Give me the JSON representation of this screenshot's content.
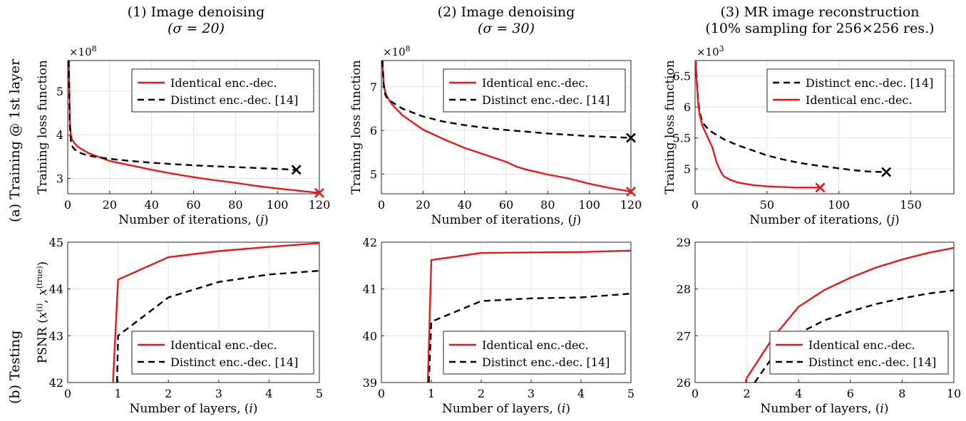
{
  "column_titles": [
    {
      "line1": "(1) Image denoising",
      "line2": "(σ = 20)"
    },
    {
      "line1": "(2) Image denoising",
      "line2": "(σ = 30)"
    },
    {
      "line1": "(3) MR image reconstruction",
      "line2": "(10% sampling for 256×256 res.)"
    }
  ],
  "row_labels": [
    "(a) Training @ 1st layer",
    "(b) Testing"
  ],
  "colors": {
    "identical": "#e41a1c",
    "distinct": "#000000",
    "grid": "#e3e3e3"
  },
  "chart_data": [
    {
      "type": "line",
      "row": 0,
      "col": 0,
      "xlabel": "Number of iterations, (j)",
      "ylabel": "Training loss function",
      "exponent": "×10^8",
      "xlim": [
        0,
        120
      ],
      "ylim": [
        2.65,
        5.7
      ],
      "xticks": [
        0,
        20,
        40,
        60,
        80,
        100,
        120
      ],
      "yticks": [
        3,
        4,
        5
      ],
      "legend": "top-right",
      "series": [
        {
          "name": "Identical enc.-dec.",
          "style": "solid",
          "end_marker": "x",
          "x": [
            0.5,
            1,
            1.5,
            2,
            3,
            5,
            10,
            20,
            30,
            40,
            50,
            60,
            70,
            80,
            90,
            100,
            110,
            120
          ],
          "y": [
            5.7,
            4.3,
            4.0,
            3.9,
            3.82,
            3.72,
            3.58,
            3.4,
            3.3,
            3.2,
            3.11,
            3.03,
            2.96,
            2.9,
            2.83,
            2.77,
            2.72,
            2.67
          ]
        },
        {
          "name": "Distinct enc.-dec. [14]",
          "style": "dashed",
          "end_marker": "x",
          "x": [
            0.5,
            1,
            1.5,
            2,
            3,
            5,
            10,
            20,
            30,
            40,
            50,
            60,
            70,
            80,
            90,
            100,
            109
          ],
          "y": [
            5.7,
            4.2,
            3.85,
            3.75,
            3.68,
            3.6,
            3.52,
            3.45,
            3.4,
            3.36,
            3.33,
            3.3,
            3.28,
            3.26,
            3.24,
            3.22,
            3.2
          ]
        }
      ]
    },
    {
      "type": "line",
      "row": 0,
      "col": 1,
      "xlabel": "Number of iterations, (j)",
      "ylabel": "Training loss function",
      "exponent": "×10^8",
      "xlim": [
        0,
        120
      ],
      "ylim": [
        4.55,
        7.6
      ],
      "xticks": [
        0,
        20,
        40,
        60,
        80,
        100,
        120
      ],
      "yticks": [
        5,
        6,
        7
      ],
      "legend": "top-right",
      "series": [
        {
          "name": "Identical enc.-dec.",
          "style": "solid",
          "end_marker": "x",
          "x": [
            0.5,
            1,
            1.5,
            2,
            3,
            5,
            10,
            20,
            30,
            40,
            50,
            60,
            65,
            70,
            80,
            90,
            100,
            110,
            120
          ],
          "y": [
            7.6,
            7.1,
            6.95,
            6.85,
            6.75,
            6.6,
            6.35,
            6.02,
            5.8,
            5.6,
            5.44,
            5.28,
            5.17,
            5.1,
            4.99,
            4.9,
            4.78,
            4.68,
            4.6
          ]
        },
        {
          "name": "Distinct enc.-dec. [14]",
          "style": "dashed",
          "end_marker": "x",
          "x": [
            0.5,
            1,
            1.5,
            2,
            3,
            5,
            10,
            20,
            30,
            40,
            50,
            60,
            70,
            80,
            90,
            100,
            110,
            120
          ],
          "y": [
            7.6,
            7.1,
            6.9,
            6.8,
            6.72,
            6.65,
            6.5,
            6.32,
            6.2,
            6.12,
            6.06,
            6.01,
            5.97,
            5.93,
            5.9,
            5.87,
            5.85,
            5.83
          ]
        }
      ]
    },
    {
      "type": "line",
      "row": 0,
      "col": 2,
      "xlabel": "Number of iterations, (j)",
      "ylabel": "Training loss function",
      "exponent": "×10^3",
      "xlim": [
        0,
        180
      ],
      "ylim": [
        4.6,
        6.75
      ],
      "xticks": [
        0,
        50,
        100,
        150
      ],
      "yticks": [
        5,
        5.5,
        6,
        6.5
      ],
      "legend": "top-right",
      "series": [
        {
          "name": "Distinct enc.-dec. [14]",
          "style": "dashed",
          "end_marker": "x",
          "x": [
            0.5,
            1,
            2,
            3,
            5,
            10,
            20,
            30,
            40,
            50,
            60,
            70,
            80,
            90,
            100,
            110,
            120,
            133
          ],
          "y": [
            6.75,
            6.5,
            6.15,
            5.95,
            5.75,
            5.62,
            5.48,
            5.38,
            5.3,
            5.22,
            5.16,
            5.11,
            5.07,
            5.04,
            5.01,
            4.98,
            4.96,
            4.95
          ]
        },
        {
          "name": "Identical enc.-dec.",
          "style": "solid",
          "end_marker": "x",
          "x": [
            0.5,
            1,
            2,
            3,
            5,
            8,
            12,
            15,
            18,
            20,
            25,
            30,
            40,
            50,
            60,
            70,
            80,
            87
          ],
          "y": [
            6.75,
            6.45,
            6.1,
            5.9,
            5.7,
            5.55,
            5.35,
            5.1,
            4.95,
            4.88,
            4.82,
            4.78,
            4.74,
            4.72,
            4.71,
            4.7,
            4.7,
            4.7
          ]
        }
      ]
    },
    {
      "type": "line",
      "row": 1,
      "col": 0,
      "xlabel": "Number of layers, (i)",
      "ylabel": "PSNR (x^(i), x^(true))",
      "xlim": [
        0,
        5
      ],
      "ylim": [
        42,
        45
      ],
      "xticks": [
        0,
        1,
        2,
        3,
        4,
        5
      ],
      "yticks": [
        42,
        43,
        44,
        45
      ],
      "legend": "bottom-right",
      "series": [
        {
          "name": "Identical enc.-dec.",
          "style": "solid",
          "x": [
            0.9,
            1,
            2,
            3,
            4,
            5
          ],
          "y": [
            42,
            44.2,
            44.68,
            44.81,
            44.9,
            44.98
          ]
        },
        {
          "name": "Distinct enc.-dec. [14]",
          "style": "dashed",
          "x": [
            0.98,
            1,
            2,
            3,
            4,
            5
          ],
          "y": [
            42,
            43.0,
            43.82,
            44.15,
            44.31,
            44.39
          ]
        }
      ]
    },
    {
      "type": "line",
      "row": 1,
      "col": 1,
      "xlabel": "Number of layers, (i)",
      "ylabel": "",
      "xlim": [
        0,
        5
      ],
      "ylim": [
        39,
        42
      ],
      "xticks": [
        0,
        1,
        2,
        3,
        4,
        5
      ],
      "yticks": [
        39,
        40,
        41,
        42
      ],
      "legend": "bottom-right",
      "series": [
        {
          "name": "Identical enc.-dec.",
          "style": "solid",
          "x": [
            0.93,
            1,
            2,
            3,
            4,
            5
          ],
          "y": [
            39,
            41.62,
            41.77,
            41.78,
            41.79,
            41.82
          ]
        },
        {
          "name": "Distinct enc.-dec. [14]",
          "style": "dashed",
          "x": [
            0.95,
            1,
            2,
            3,
            4,
            5
          ],
          "y": [
            39,
            40.3,
            40.74,
            40.8,
            40.82,
            40.9
          ]
        }
      ]
    },
    {
      "type": "line",
      "row": 1,
      "col": 2,
      "xlabel": "Number of layers, (i)",
      "ylabel": "",
      "xlim": [
        0,
        10
      ],
      "ylim": [
        26,
        29
      ],
      "xticks": [
        0,
        2,
        4,
        6,
        8,
        10
      ],
      "yticks": [
        26,
        27,
        28,
        29
      ],
      "legend": "bottom-right",
      "series": [
        {
          "name": "Identical enc.-dec.",
          "style": "solid",
          "x": [
            1.95,
            2,
            3,
            4,
            5,
            6,
            7,
            8,
            9,
            10
          ],
          "y": [
            26,
            26.1,
            26.95,
            27.62,
            27.98,
            28.24,
            28.46,
            28.63,
            28.77,
            28.88
          ]
        },
        {
          "name": "Distinct enc.-dec. [14]",
          "style": "dashed",
          "x": [
            2.3,
            3,
            4,
            5,
            6,
            7,
            8,
            9,
            10
          ],
          "y": [
            26,
            26.55,
            27.05,
            27.33,
            27.52,
            27.68,
            27.8,
            27.9,
            27.97
          ]
        }
      ]
    }
  ]
}
